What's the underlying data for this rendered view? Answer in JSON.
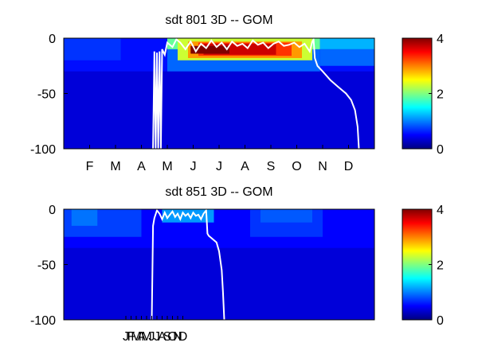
{
  "chart_data": [
    {
      "type": "heatmap",
      "title": "sdt  801 3D   -- GOM",
      "xlabel": "",
      "ylabel": "",
      "xlim": [
        0,
        12
      ],
      "ylim": [
        -100,
        0
      ],
      "y_ticks": [
        "0",
        "-50",
        "-100"
      ],
      "y_tick_values": [
        0,
        -50,
        -100
      ],
      "x_tick_labels": [
        "F",
        "M",
        "A",
        "M",
        "J",
        "J",
        "A",
        "S",
        "O",
        "N",
        "D"
      ],
      "x_tick_values": [
        1,
        2,
        3,
        4,
        5,
        6,
        7,
        8,
        9,
        10,
        11
      ],
      "colormap": "jet",
      "clim": [
        0,
        4
      ],
      "colorbar_ticks": [
        "4",
        "2",
        "0"
      ],
      "colorbar_tick_values": [
        4,
        2,
        0
      ],
      "background_value": 0.35,
      "regions": [
        {
          "x": [
            0,
            12
          ],
          "y": [
            -30,
            0
          ],
          "value": 0.55
        },
        {
          "x": [
            0,
            2.2
          ],
          "y": [
            -20,
            0
          ],
          "value": 0.7
        },
        {
          "x": [
            4.0,
            9.9
          ],
          "y": [
            -30,
            -10
          ],
          "value": 0.9
        },
        {
          "x": [
            4.0,
            9.9
          ],
          "y": [
            -10,
            0
          ],
          "value": 1.9
        },
        {
          "x": [
            4.4,
            9.6
          ],
          "y": [
            -20,
            0
          ],
          "value": 2.3
        },
        {
          "x": [
            4.8,
            9.2
          ],
          "y": [
            -18,
            -3
          ],
          "value": 2.9
        },
        {
          "x": [
            5.2,
            8.8
          ],
          "y": [
            -16,
            -4
          ],
          "value": 3.3
        },
        {
          "x": [
            5.4,
            8.2
          ],
          "y": [
            -15,
            -5
          ],
          "value": 3.7
        },
        {
          "x": [
            4.9,
            6.4
          ],
          "y": [
            -14,
            -7
          ],
          "value": 4.0
        },
        {
          "x": [
            9.9,
            12.0
          ],
          "y": [
            -10,
            0
          ],
          "value": 1.2
        },
        {
          "x": [
            9.9,
            12.0
          ],
          "y": [
            -25,
            -10
          ],
          "value": 0.9
        }
      ],
      "line": {
        "x": [
          3.45,
          3.5,
          3.55,
          3.6,
          3.65,
          3.7,
          3.75,
          3.8,
          3.9,
          4.0,
          4.2,
          4.35,
          4.5,
          4.7,
          4.9,
          5.1,
          5.3,
          5.5,
          5.7,
          5.9,
          6.1,
          6.3,
          6.5,
          6.7,
          6.9,
          7.1,
          7.3,
          7.5,
          7.7,
          7.9,
          8.1,
          8.3,
          8.5,
          8.7,
          8.9,
          9.1,
          9.3,
          9.5,
          9.6,
          9.65,
          9.7,
          9.8,
          10.0,
          10.3,
          10.6,
          10.9,
          11.1,
          11.25,
          11.35,
          11.4
        ],
        "y": [
          -100,
          -12,
          -100,
          -13,
          -100,
          -12,
          -100,
          -10,
          -15,
          -4,
          -8,
          -1,
          -4,
          -10,
          -3,
          -12,
          -5,
          -9,
          -2,
          -8,
          -4,
          -10,
          -3,
          -7,
          -5,
          -9,
          -2,
          -6,
          -4,
          -9,
          -5,
          -3,
          -7,
          -6,
          -4,
          -8,
          -5,
          -12,
          -3,
          -1,
          -18,
          -25,
          -30,
          -38,
          -44,
          -50,
          -56,
          -65,
          -80,
          -100
        ]
      }
    },
    {
      "type": "heatmap",
      "title": "sdt  851 3D   -- GOM",
      "xlabel": "",
      "ylabel": "",
      "xlim": [
        0,
        12
      ],
      "ylim": [
        -100,
        0
      ],
      "y_ticks": [
        "0",
        "-50",
        "-100"
      ],
      "y_tick_values": [
        0,
        -50,
        -100
      ],
      "x_tick_labels": [
        "J",
        "F",
        "M",
        "A",
        "M",
        "J",
        "J",
        "A",
        "S",
        "O",
        "N",
        "D"
      ],
      "x_tick_values": [
        2.4,
        2.6,
        2.8,
        3.0,
        3.2,
        3.4,
        3.6,
        3.8,
        4.0,
        4.2,
        4.4,
        4.6
      ],
      "colormap": "jet",
      "clim": [
        0,
        4
      ],
      "colorbar_ticks": [
        "4",
        "2",
        "0"
      ],
      "colorbar_tick_values": [
        4,
        2,
        0
      ],
      "background_value": 0.35,
      "regions": [
        {
          "x": [
            0,
            12
          ],
          "y": [
            -35,
            0
          ],
          "value": 0.5
        },
        {
          "x": [
            0,
            3.0
          ],
          "y": [
            -25,
            0
          ],
          "value": 0.75
        },
        {
          "x": [
            0.3,
            1.3
          ],
          "y": [
            -15,
            0
          ],
          "value": 0.95
        },
        {
          "x": [
            3.8,
            5.8
          ],
          "y": [
            -12,
            0
          ],
          "value": 1.1
        },
        {
          "x": [
            7.2,
            10.0
          ],
          "y": [
            -25,
            0
          ],
          "value": 0.7
        },
        {
          "x": [
            7.6,
            9.6
          ],
          "y": [
            -12,
            0
          ],
          "value": 0.85
        }
      ],
      "line": {
        "x": [
          3.4,
          3.45,
          3.5,
          3.6,
          3.7,
          3.8,
          3.9,
          4.0,
          4.1,
          4.2,
          4.3,
          4.4,
          4.5,
          4.6,
          4.7,
          4.8,
          4.9,
          5.0,
          5.1,
          5.2,
          5.3,
          5.4,
          5.5,
          5.55,
          5.6,
          5.7,
          5.8,
          5.9,
          6.0,
          6.1,
          6.15,
          6.2
        ],
        "y": [
          -100,
          -15,
          -8,
          -1,
          -4,
          -9,
          -3,
          -8,
          -5,
          -2,
          -7,
          -4,
          -9,
          -3,
          -6,
          -4,
          -8,
          -3,
          -6,
          -5,
          -9,
          -4,
          -1,
          -22,
          -24,
          -26,
          -28,
          -30,
          -38,
          -55,
          -75,
          -100
        ]
      }
    }
  ]
}
